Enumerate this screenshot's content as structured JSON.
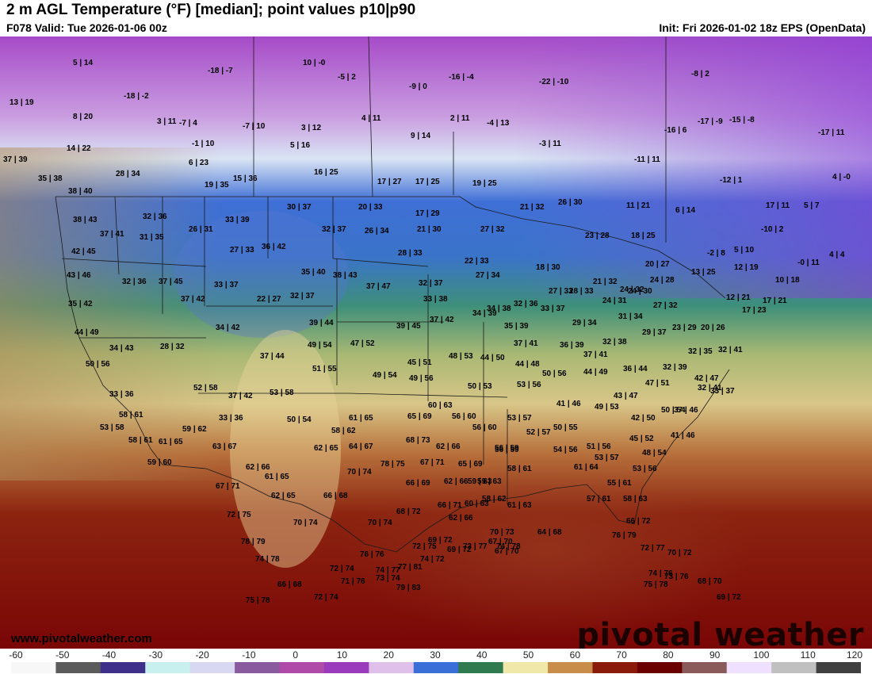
{
  "header": {
    "title": "2 m AGL Temperature (°F) [median]; point values p10|p90",
    "valid": "F078 Valid: Tue 2026-01-06 00z",
    "init": "Init: Fri 2026-01-02 18z EPS (OpenData)"
  },
  "footer": {
    "website": "www.pivotalweather.com",
    "brand": "pivotal weather"
  },
  "colorbar": {
    "ticks": [
      "-60",
      "-50",
      "-40",
      "-30",
      "-20",
      "-10",
      "0",
      "10",
      "20",
      "30",
      "40",
      "50",
      "60",
      "70",
      "80",
      "90",
      "100",
      "110",
      "120"
    ],
    "colors": [
      "#f7f7f7",
      "#5b5b5b",
      "#3d2f8a",
      "#c8f0ee",
      "#d8d8f2",
      "#8a5a9e",
      "#b04aa8",
      "#9a3bbd",
      "#dfc0ea",
      "#3a6fd8",
      "#2f7a4e",
      "#f0e8a8",
      "#c98d4a",
      "#8a1a0a",
      "#6b0000",
      "#8a5a5a",
      "#f0e0ff",
      "#c0c0c0",
      "#404040"
    ]
  },
  "map_layer": {
    "type": "temperature-grid",
    "units": "°F"
  },
  "points": [
    "5 | 14",
    "10 | -0",
    "-18 | -7",
    "-5 | 2",
    "-9 | 0",
    "-16 | -4",
    "-22 | -10",
    "-8 | 2",
    "13 | 19",
    "-18 | -2",
    "8 | 20",
    "3 | 11",
    "-7 | 4",
    "-7 | 10",
    "3 | 12",
    "4 | 11",
    "2 | 11",
    "-4 | 13",
    "-16 | 6",
    "-17 | -9",
    "-15 | -8",
    "9 | 14",
    "-1 | 10",
    "5 | 16",
    "-3 | 11",
    "-17 | 11",
    "14 | 22",
    "37 | 39",
    "6 | 23",
    "-11 | 11",
    "35 | 38",
    "28 | 34",
    "16 | 25",
    "15 | 36",
    "19 | 35",
    "17 | 27",
    "17 | 25",
    "19 | 25",
    "-12 | 1",
    "4 | -0",
    "38 | 40",
    "30 | 37",
    "20 | 33",
    "21 | 32",
    "26 | 30",
    "11 | 21",
    "6 | 14",
    "17 | 29",
    "38 | 43",
    "32 | 36",
    "33 | 39",
    "17 | 11",
    "5 | 7",
    "37 | 41",
    "31 | 35",
    "26 | 31",
    "32 | 37",
    "26 | 34",
    "21 | 30",
    "27 | 32",
    "23 | 28",
    "18 | 25",
    "-10 | 2",
    "42 | 45",
    "27 | 33",
    "36 | 42",
    "28 | 33",
    "22 | 33",
    "-2 | 8",
    "5 | 10",
    "-0 | 11",
    "4 | 4",
    "43 | 46",
    "35 | 40",
    "38 | 43",
    "18 | 30",
    "20 | 27",
    "12 | 19",
    "10 | 18",
    "32 | 36",
    "37 | 45",
    "33 | 37",
    "32 | 37",
    "37 | 47",
    "32 | 37",
    "27 | 34",
    "24 | 28",
    "13 | 25",
    "35 | 42",
    "37 | 42",
    "22 | 27",
    "33 | 38",
    "21 | 32",
    "24 | 32",
    "27 | 33",
    "28 | 33",
    "24 | 31",
    "24 | 30",
    "12 | 21",
    "17 | 21",
    "34 | 38",
    "32 | 36",
    "33 | 37",
    "27 | 32",
    "17 | 23",
    "44 | 49",
    "34 | 42",
    "39 | 44",
    "39 | 45",
    "37 | 42",
    "34 | 39",
    "35 | 39",
    "29 | 34",
    "31 | 34",
    "23 | 29",
    "20 | 26",
    "29 | 37",
    "34 | 43",
    "28 | 32",
    "49 | 54",
    "47 | 52",
    "37 | 41",
    "36 | 39",
    "32 | 38",
    "50 | 56",
    "37 | 44",
    "45 | 51",
    "48 | 53",
    "44 | 50",
    "37 | 41",
    "32 | 35",
    "32 | 41",
    "51 | 55",
    "44 | 48",
    "36 | 44",
    "32 | 39",
    "49 | 54",
    "49 | 56",
    "50 | 56",
    "44 | 49",
    "42 | 47",
    "33 | 36",
    "52 | 58",
    "50 | 53",
    "53 | 56",
    "47 | 51",
    "32 | 41",
    "33 | 37",
    "37 | 42",
    "53 | 58",
    "43 | 47",
    "41 | 46",
    "49 | 53",
    "50 | 54",
    "37 | 46",
    "58 | 61",
    "60 | 63",
    "33 | 36",
    "65 | 69",
    "56 | 60",
    "53 | 57",
    "42 | 50",
    "61 | 65",
    "50 | 54",
    "59 | 62",
    "58 | 62",
    "56 | 60",
    "52 | 57",
    "50 | 55",
    "45 | 52",
    "41 | 46",
    "53 | 58",
    "58 | 61",
    "61 | 65",
    "68 | 73",
    "63 | 67",
    "62 | 65",
    "64 | 67",
    "62 | 66",
    "56 | 59",
    "54 | 56",
    "51 | 56",
    "48 | 54",
    "59 | 60",
    "67 | 71",
    "65 | 69",
    "61 | 64",
    "53 | 57",
    "59 | 63",
    "70 | 74",
    "78 | 75",
    "58 | 61",
    "56 | 59",
    "53 | 56",
    "62 | 66",
    "61 | 65",
    "66 | 69",
    "62 | 66",
    "59 | 63",
    "55 | 61",
    "67 | 71",
    "62 | 65",
    "66 | 68",
    "58 | 62",
    "57 | 61",
    "58 | 63",
    "66 | 71",
    "60 | 63",
    "61 | 63",
    "72 | 75",
    "68 | 72",
    "62 | 66",
    "66 | 72",
    "70 | 74",
    "70 | 74",
    "70 | 73",
    "64 | 68",
    "76 | 79",
    "78 | 79",
    "69 | 72",
    "72 | 75",
    "69 | 72",
    "67 | 70",
    "74 | 78",
    "67 | 70",
    "72 | 77",
    "74 | 78",
    "74 | 72",
    "70 | 72",
    "76 | 76",
    "77 | 81",
    "73 | 77",
    "74 | 76",
    "79 | 83",
    "72 | 74",
    "74 | 77",
    "73 | 76",
    "66 | 68",
    "68 | 70",
    "71 | 76",
    "73 | 74",
    "69 | 72",
    "75 | 78",
    "75 | 78",
    "72 | 74"
  ]
}
